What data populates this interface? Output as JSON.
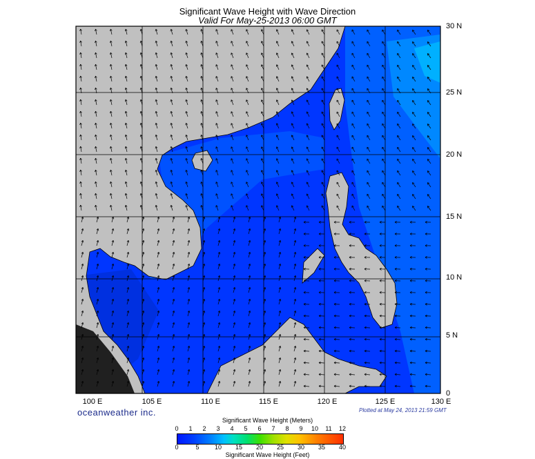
{
  "title": "Significant Wave Height with Wave Direction",
  "subtitle": "Valid For May-25-2013 06:00 GMT",
  "lat_labels": [
    "30 N",
    "25 N",
    "20 N",
    "15 N",
    "10 N",
    "5 N",
    "0"
  ],
  "lon_labels": [
    "100 E",
    "105 E",
    "110 E",
    "115 E",
    "120 E",
    "125 E",
    "130 E"
  ],
  "brand": "oceanweather inc.",
  "plotted": "Plotted at May 24, 2013 21:59 GMT",
  "legend": {
    "meters_title": "Significant Wave Height (Meters)",
    "meters_ticks": [
      "0",
      "1",
      "2",
      "3",
      "4",
      "5",
      "6",
      "7",
      "8",
      "9",
      "10",
      "11",
      "12"
    ],
    "feet_ticks": [
      "0",
      "5",
      "10",
      "15",
      "20",
      "25",
      "30",
      "35",
      "40"
    ],
    "feet_title": "Significant Wave Height (Feet)"
  },
  "colors": {
    "land": "#c0c0c0",
    "sea_low": "#0018ff",
    "sea_mid": "#0050ff",
    "sea_high": "#0090ff"
  }
}
